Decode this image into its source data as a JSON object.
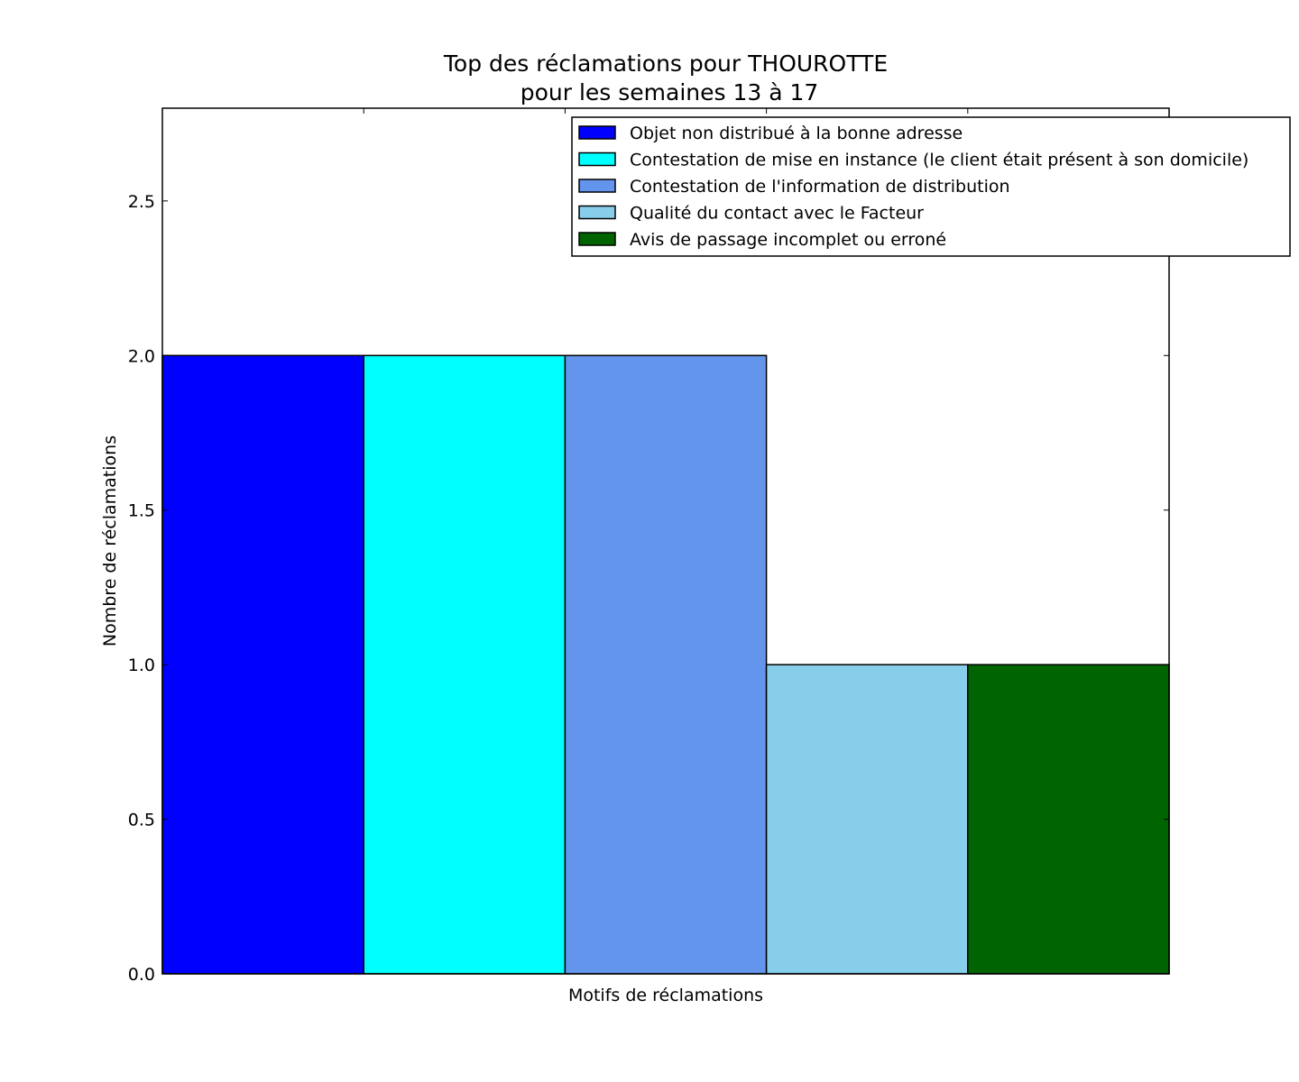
{
  "chart_data": {
    "type": "bar",
    "title": [
      "Top des réclamations pour THOUROTTE",
      "pour les semaines 13 à 17"
    ],
    "xlabel": "Motifs de réclamations",
    "ylabel": "Nombre de réclamations",
    "ylim": [
      0,
      2.8
    ],
    "yticks": [
      0.0,
      0.5,
      1.0,
      1.5,
      2.0,
      2.5
    ],
    "ytick_labels": [
      "0.0",
      "0.5",
      "1.0",
      "1.5",
      "2.0",
      "2.5"
    ],
    "grid": false,
    "legend_position": "top-right",
    "categories": [
      "Objet non distribué à la bonne adresse",
      "Contestation de mise en instance (le client était présent à son domicile)",
      "Contestation de l'information de distribution",
      "Qualité du contact avec le Facteur",
      "Avis de passage incomplet ou erroné"
    ],
    "values": [
      2,
      2,
      2,
      1,
      1
    ],
    "colors": [
      "#0000ff",
      "#00ffff",
      "#6495ed",
      "#87ceeb",
      "#006400"
    ]
  }
}
